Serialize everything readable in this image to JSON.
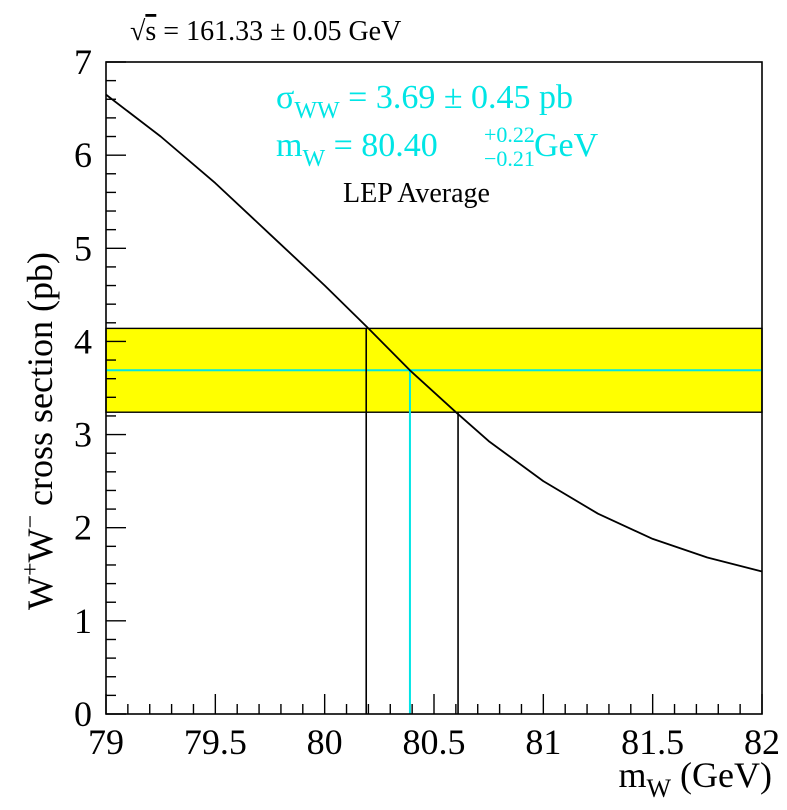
{
  "chart_data": {
    "type": "line",
    "xlabel": {
      "main": "m",
      "sub": "W",
      "unit": " (GeV)"
    },
    "ylabel": {
      "w1": "W",
      "sup1": "+",
      "w2": "W",
      "sup2": "−",
      "rest": " cross section (pb)"
    },
    "xlim": [
      79,
      82
    ],
    "ylim": [
      0,
      7
    ],
    "x_ticks": [
      79,
      79.5,
      80,
      80.5,
      81,
      81.5,
      82
    ],
    "x_tick_labels": [
      "79",
      "79.5",
      "80",
      "80.5",
      "81",
      "81.5",
      "82"
    ],
    "y_ticks": [
      0,
      1,
      2,
      3,
      4,
      5,
      6,
      7
    ],
    "y_tick_labels": [
      "0",
      "1",
      "2",
      "3",
      "4",
      "5",
      "6",
      "7"
    ],
    "grid": false,
    "energy_label": {
      "root": "√",
      "s": "s",
      "text": " = 161.33 ± 0.05 GeV"
    },
    "series": [
      {
        "x": [
          79.0,
          79.25,
          79.5,
          79.75,
          80.0,
          80.2,
          80.39,
          80.6,
          80.75,
          81.0,
          81.25,
          81.5,
          81.75,
          82.0
        ],
        "y": [
          6.65,
          6.2,
          5.7,
          5.15,
          4.6,
          4.14,
          3.69,
          3.24,
          2.93,
          2.5,
          2.15,
          1.88,
          1.68,
          1.53
        ],
        "color": "#000000"
      }
    ],
    "band": {
      "y_low": 3.24,
      "y_high": 4.14,
      "color": "#ffff00"
    },
    "central_line": {
      "y": 3.69,
      "x": 80.39,
      "color": "#00e5e5"
    },
    "error_lines": {
      "x_low": 80.19,
      "x_high": 80.61,
      "color": "#000000"
    },
    "annotations": {
      "sigma": {
        "symbol": "σ",
        "sub": "WW",
        "text": " = 3.69 ± 0.45 pb"
      },
      "mass": {
        "m": "m",
        "sub": "W",
        "value": " = 80.40 ",
        "err_up": "+0.22",
        "err_down": "−0.21",
        "unit": " GeV"
      },
      "average": "LEP Average"
    },
    "annotation_color": "#00e5e5"
  }
}
